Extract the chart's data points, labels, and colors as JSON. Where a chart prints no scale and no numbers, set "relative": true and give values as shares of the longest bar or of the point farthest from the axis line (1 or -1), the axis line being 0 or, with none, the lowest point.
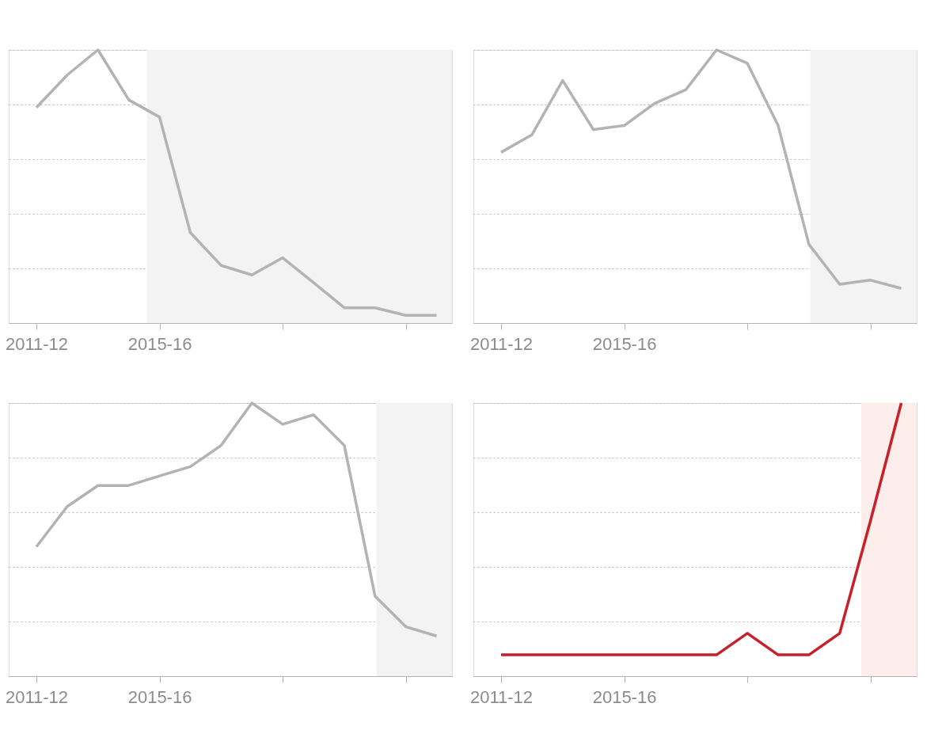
{
  "chart_data": [
    {
      "type": "line",
      "relative": true,
      "categories": [
        "2011-12",
        null,
        null,
        null,
        "2015-16",
        null,
        null,
        null,
        null,
        null,
        null,
        null,
        null,
        null
      ],
      "tick_labels": "x",
      "grid": "y",
      "marker": "none",
      "line_style": "solid",
      "series": [
        {
          "color": "#b3b3b3",
          "values": [
            0.789,
            0.908,
            1,
            0.817,
            0.754,
            0.331,
            0.211,
            0.176,
            0.239,
            0.148,
            0.056,
            0.056,
            0.028,
            0.028
          ]
        }
      ]
    },
    {
      "type": "line",
      "relative": true,
      "categories": [
        "2011-12",
        null,
        null,
        null,
        "2015-16",
        null,
        null,
        null,
        null,
        null,
        null,
        null,
        null,
        null
      ],
      "tick_labels": "x",
      "grid": "y",
      "marker": "none",
      "line_style": "solid",
      "series": [
        {
          "color": "#b3b3b3",
          "values": [
            0.625,
            0.689,
            0.888,
            0.708,
            0.723,
            0.805,
            0.854,
            1,
            0.951,
            0.723,
            0.288,
            0.142,
            0.157,
            0.127
          ]
        }
      ]
    },
    {
      "type": "line",
      "relative": true,
      "categories": [
        "2011-12",
        null,
        null,
        null,
        "2015-16",
        null,
        null,
        null,
        null,
        null,
        null,
        null,
        null,
        null
      ],
      "tick_labels": "x",
      "grid": "y",
      "marker": "none",
      "line_style": "solid",
      "series": [
        {
          "color": "#b3b3b3",
          "values": [
            0.474,
            0.621,
            0.698,
            0.698,
            0.733,
            0.767,
            0.845,
            1,
            0.922,
            0.957,
            0.845,
            0.293,
            0.181,
            0.147
          ]
        }
      ]
    },
    {
      "type": "line",
      "relative": true,
      "categories": [
        "2011-12",
        null,
        null,
        null,
        "2015-16",
        null,
        null,
        null,
        null,
        null,
        null,
        null,
        null,
        null
      ],
      "tick_labels": "x",
      "grid": "y",
      "marker": "none",
      "line_style": "solid",
      "series": [
        {
          "color": "#c8202a",
          "values": [
            0.078,
            0.078,
            0.078,
            0.078,
            0.078,
            0.078,
            0.078,
            0.078,
            0.157,
            0.078,
            0.078,
            0.157,
            0.569,
            1
          ]
        }
      ]
    }
  ]
}
